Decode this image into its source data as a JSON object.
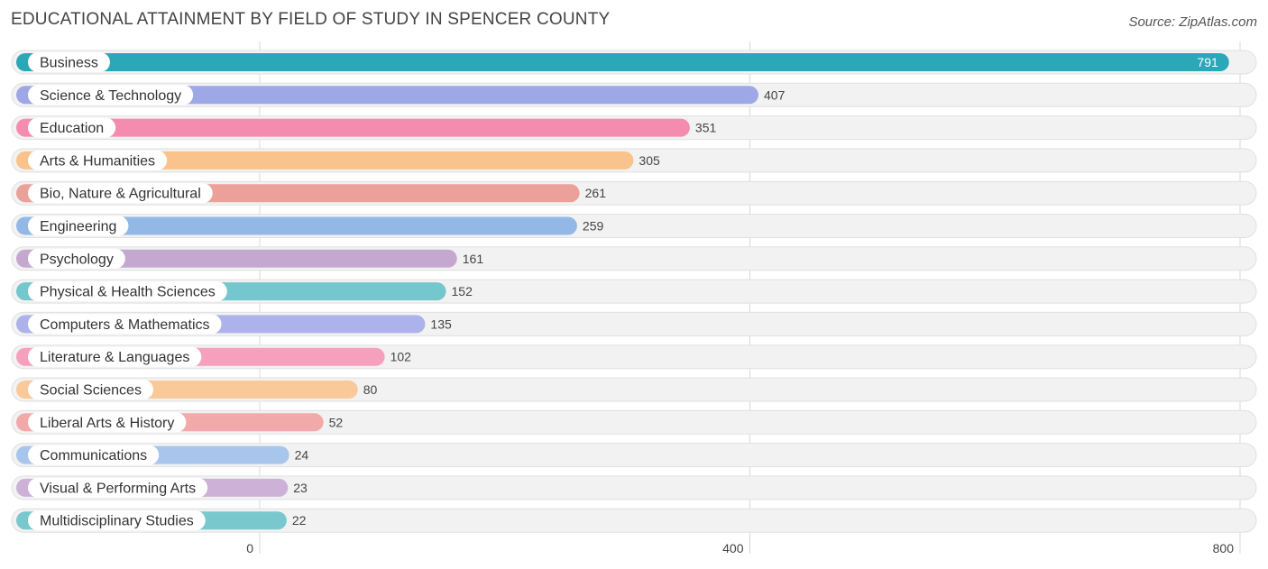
{
  "title": "EDUCATIONAL ATTAINMENT BY FIELD OF STUDY IN SPENCER COUNTY",
  "source": "Source: ZipAtlas.com",
  "chart_data": {
    "type": "bar",
    "orientation": "horizontal",
    "categories": [
      "Business",
      "Science & Technology",
      "Education",
      "Arts & Humanities",
      "Bio, Nature & Agricultural",
      "Engineering",
      "Psychology",
      "Physical & Health Sciences",
      "Computers & Mathematics",
      "Literature & Languages",
      "Social Sciences",
      "Liberal Arts & History",
      "Communications",
      "Visual & Performing Arts",
      "Multidisciplinary Studies"
    ],
    "values": [
      791,
      407,
      351,
      305,
      261,
      259,
      161,
      152,
      135,
      102,
      80,
      52,
      24,
      23,
      22
    ],
    "value_labels": [
      "791",
      "407",
      "351",
      "305",
      "261",
      "259",
      "161",
      "152",
      "135",
      "102",
      "80",
      "52",
      "24",
      "23",
      "22"
    ],
    "colors": [
      "#2aa8b8",
      "#9fa8e6",
      "#f48caf",
      "#f9c38b",
      "#eba09a",
      "#94b8e6",
      "#c5a8d0",
      "#74c7cd",
      "#adb3ea",
      "#f6a0bd",
      "#f9c99a",
      "#f1aaa9",
      "#a8c6ec",
      "#cdb1d6",
      "#78c8cd"
    ],
    "xlim": [
      0,
      800
    ],
    "ticks": [
      0,
      400,
      800
    ],
    "tick_labels": [
      "0",
      "400",
      "800"
    ],
    "grid": true
  }
}
